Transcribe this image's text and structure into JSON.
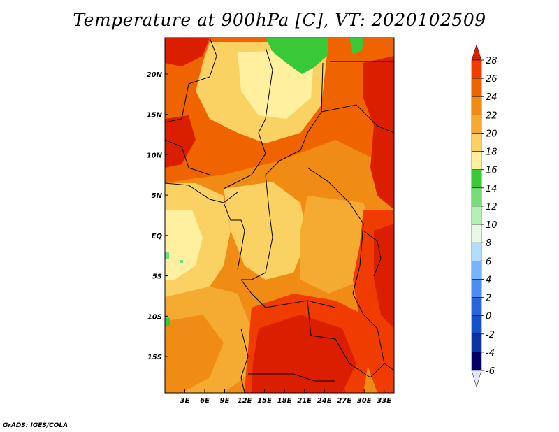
{
  "title": "Temperature at 900hPa [C], VT: 2020102509",
  "credit": "GrADS: IGES/COLA",
  "map": {
    "lon_range": [
      0,
      34.5
    ],
    "lat_range": [
      -19.5,
      24.5
    ],
    "lat_ticks": [
      "20N",
      "15N",
      "10N",
      "5N",
      "EQ",
      "5S",
      "10S",
      "15S"
    ],
    "lat_tick_values": [
      20,
      15,
      10,
      5,
      0,
      -5,
      -10,
      -15
    ],
    "lon_ticks": [
      "3E",
      "6E",
      "9E",
      "12E",
      "15E",
      "18E",
      "21E",
      "24E",
      "27E",
      "30E",
      "33E"
    ],
    "lon_tick_values": [
      3,
      6,
      9,
      12,
      15,
      18,
      21,
      24,
      27,
      30,
      33
    ]
  },
  "colorbar": {
    "labels": [
      "28",
      "26",
      "24",
      "22",
      "20",
      "18",
      "16",
      "14",
      "12",
      "10",
      "8",
      "6",
      "4",
      "2",
      "0",
      "-2",
      "-4",
      "-6"
    ],
    "colors": [
      "#dc1e00",
      "#f03c00",
      "#f06400",
      "#f08c14",
      "#f5aa32",
      "#fad264",
      "#fff0a0",
      "#38c838",
      "#78dc78",
      "#b4f0b4",
      "#e6fae6",
      "#b4dcff",
      "#78b4fa",
      "#4b8cf0",
      "#2864dc",
      "#1450c8",
      "#0a32a0",
      "#000064"
    ],
    "top_arrow_color": "#dc1e00",
    "bottom_arrow_color": "#e6e6fa"
  }
}
